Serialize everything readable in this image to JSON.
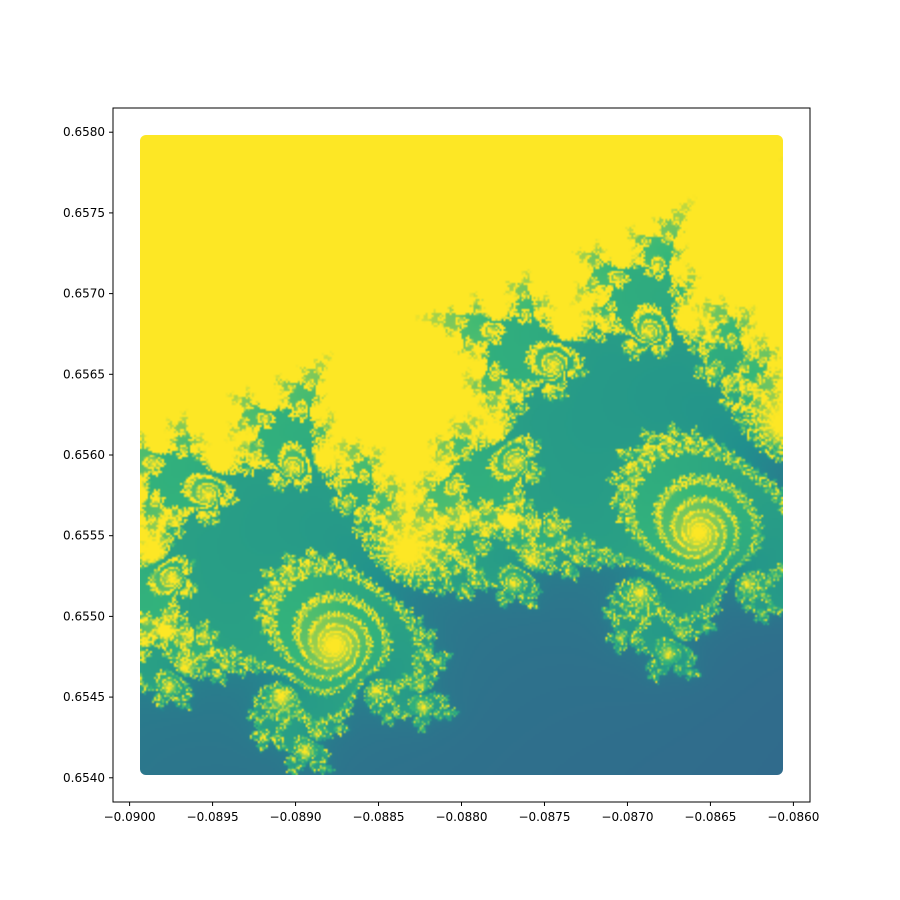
{
  "chart_data": {
    "type": "heatmap",
    "title": "",
    "xlabel": "",
    "ylabel": "",
    "xlim": [
      -0.0901,
      -0.0859
    ],
    "ylim": [
      0.65385,
      0.65815
    ],
    "data_extent": {
      "x": [
        -0.09,
        -0.086
      ],
      "y": [
        0.654,
        0.658
      ]
    },
    "x_ticks": [
      "−0.0900",
      "−0.0895",
      "−0.0890",
      "−0.0885",
      "−0.0880",
      "−0.0875",
      "−0.0870",
      "−0.0865",
      "−0.0860"
    ],
    "x_tick_values": [
      -0.09,
      -0.0895,
      -0.089,
      -0.0885,
      -0.088,
      -0.0875,
      -0.087,
      -0.0865,
      -0.086
    ],
    "y_ticks": [
      "0.6540",
      "0.6545",
      "0.6550",
      "0.6555",
      "0.6560",
      "0.6565",
      "0.6570",
      "0.6575",
      "0.6580"
    ],
    "y_tick_values": [
      0.654,
      0.6545,
      0.655,
      0.6555,
      0.656,
      0.6565,
      0.657,
      0.6575,
      0.658
    ],
    "colormap": "viridis",
    "colors": {
      "inside": "#fde725",
      "high": "#35b779",
      "mid": "#21908d",
      "low": "#3b528b",
      "deep": "#440154"
    },
    "grid": false,
    "legend": "none"
  }
}
